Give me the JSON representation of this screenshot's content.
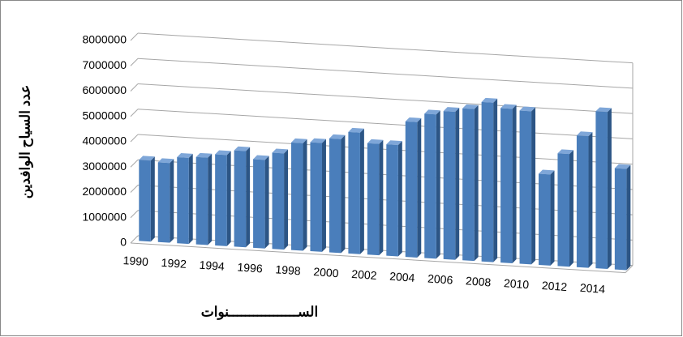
{
  "chart_data": {
    "type": "bar3d",
    "y_label": "عدد السياح الوافدين",
    "x_label": "الســـــــــــــــــنوات",
    "categories": [
      "1990",
      null,
      "1992",
      null,
      "1994",
      null,
      "1996",
      null,
      "1998",
      null,
      "2000",
      null,
      "2002",
      null,
      "2004",
      null,
      "2006",
      null,
      "2008",
      null,
      "2010",
      null,
      "2012",
      null,
      "2014",
      null
    ],
    "values": [
      3200000,
      3150000,
      3400000,
      3450000,
      3600000,
      3800000,
      3500000,
      3800000,
      4250000,
      4300000,
      4500000,
      4800000,
      4400000,
      4400000,
      5350000,
      5700000,
      5850000,
      6000000,
      6300000,
      6100000,
      6050000,
      3600000,
      4450000,
      5200000,
      6200000,
      4000000
    ],
    "color": "#4a7ebb",
    "ylim": [
      0,
      8000000
    ],
    "yticks": [
      0,
      1000000,
      2000000,
      3000000,
      4000000,
      5000000,
      6000000,
      7000000,
      8000000
    ],
    "grid": true
  }
}
